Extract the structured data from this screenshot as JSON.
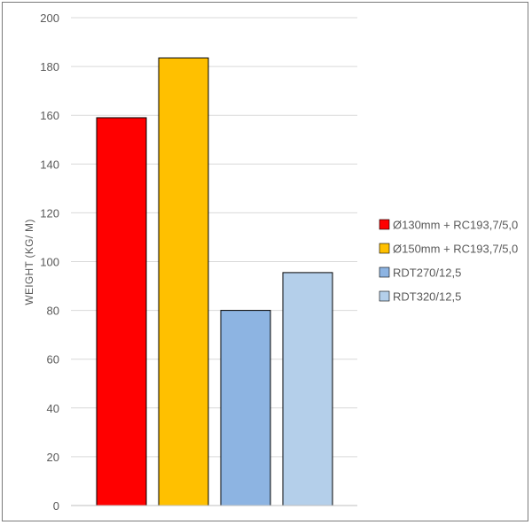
{
  "chart_data": {
    "type": "bar",
    "title": "",
    "xlabel": "",
    "ylabel": "WEIGHT (KG/ M)",
    "ylim": [
      0,
      200
    ],
    "yticks": [
      0,
      20,
      40,
      60,
      80,
      100,
      120,
      140,
      160,
      180,
      200
    ],
    "grid": true,
    "legend_position": "right",
    "series": [
      {
        "name": "Ø130mm + RC193,7/5,0",
        "value": 159,
        "color": "#ff0000"
      },
      {
        "name": "Ø150mm + RC193,7/5,0",
        "value": 183.5,
        "color": "#ffc000"
      },
      {
        "name": "RDT270/12,5",
        "value": 80,
        "color": "#8db4e2"
      },
      {
        "name": "RDT320/12,5",
        "value": 95.5,
        "color": "#b4cfea"
      }
    ]
  }
}
